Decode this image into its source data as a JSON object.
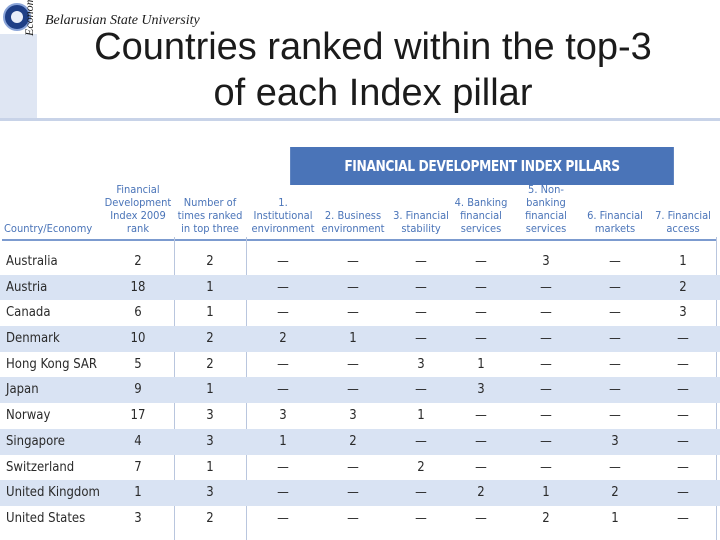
{
  "header": {
    "university": "Belarusian State University",
    "vertical_text": "Economics",
    "title": "Countries ranked within the top-3 of each Index pillar"
  },
  "table": {
    "banner": "FINANCIAL DEVELOPMENT INDEX PILLARS",
    "columns": [
      "Country/Economy",
      "Financial\nDevelopment\nIndex 2009 rank",
      "Number of\ntimes ranked\nin top three",
      "1. Institutional\nenvironment",
      "2. Business\nenvironment",
      "3. Financial\nstability",
      "4. Banking\nfinancial\nservices",
      "5. Non-banking\nfinancial\nservices",
      "6. Financial\nmarkets",
      "7. Financial\naccess"
    ],
    "rows": [
      [
        "Australia",
        "2",
        "2",
        "—",
        "—",
        "—",
        "—",
        "3",
        "—",
        "1"
      ],
      [
        "Austria",
        "18",
        "1",
        "—",
        "—",
        "—",
        "—",
        "—",
        "—",
        "2"
      ],
      [
        "Canada",
        "6",
        "1",
        "—",
        "—",
        "—",
        "—",
        "—",
        "—",
        "3"
      ],
      [
        "Denmark",
        "10",
        "2",
        "2",
        "1",
        "—",
        "—",
        "—",
        "—",
        "—"
      ],
      [
        "Hong Kong SAR",
        "5",
        "2",
        "—",
        "—",
        "3",
        "1",
        "—",
        "—",
        "—"
      ],
      [
        "Japan",
        "9",
        "1",
        "—",
        "—",
        "—",
        "3",
        "—",
        "—",
        "—"
      ],
      [
        "Norway",
        "17",
        "3",
        "3",
        "3",
        "1",
        "—",
        "—",
        "—",
        "—"
      ],
      [
        "Singapore",
        "4",
        "3",
        "1",
        "2",
        "—",
        "—",
        "—",
        "3",
        "—"
      ],
      [
        "Switzerland",
        "7",
        "1",
        "—",
        "—",
        "2",
        "—",
        "—",
        "—",
        "—"
      ],
      [
        "United Kingdom",
        "1",
        "3",
        "—",
        "—",
        "—",
        "2",
        "1",
        "2",
        "—"
      ],
      [
        "United States",
        "3",
        "2",
        "—",
        "—",
        "—",
        "—",
        "2",
        "1",
        "—"
      ]
    ]
  },
  "colors": {
    "accent": "#4a74b8",
    "row_shade": "#d9e3f3"
  }
}
